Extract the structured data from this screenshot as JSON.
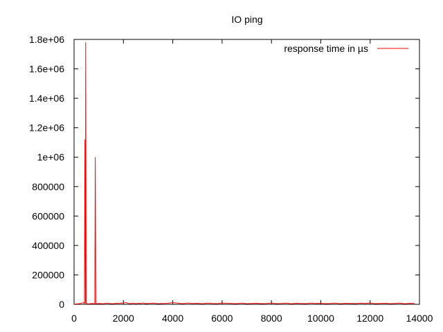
{
  "chart_data": {
    "type": "line",
    "title": "IO ping",
    "xlabel": "",
    "ylabel": "",
    "xlim": [
      0,
      14000
    ],
    "ylim": [
      0,
      1800000
    ],
    "x_ticks": [
      0,
      2000,
      4000,
      6000,
      8000,
      10000,
      12000,
      14000
    ],
    "y_ticks": [
      0,
      200000,
      400000,
      600000,
      800000,
      1000000,
      1200000,
      1400000,
      1600000,
      1800000
    ],
    "x_tick_labels": [
      "0",
      "2000",
      "4000",
      "6000",
      "8000",
      "10000",
      "12000",
      "14000"
    ],
    "y_tick_labels": [
      "0",
      "200000",
      "400000",
      "600000",
      "800000",
      "1e+06",
      "1.2e+06",
      "1.4e+06",
      "1.6e+06",
      "1.8e+06"
    ],
    "grid": false,
    "legend_position": "top-right",
    "series": [
      {
        "name": "response time in µs",
        "color": "#ff0000",
        "x": [
          0,
          100,
          200,
          300,
          380,
          420,
          440,
          460,
          470,
          480,
          490,
          500,
          520,
          540,
          600,
          700,
          800,
          840,
          860,
          880,
          900,
          1000,
          1100,
          1200,
          1300,
          1400,
          1500,
          1600,
          1700,
          1800,
          1900,
          2000,
          2100,
          2200,
          2300,
          2400,
          2500,
          2600,
          2700,
          2800,
          2900,
          3000,
          3200,
          3400,
          3600,
          3800,
          4000,
          4200,
          4400,
          4600,
          4800,
          5000,
          5200,
          5400,
          5600,
          5800,
          6000,
          6200,
          6400,
          6600,
          6800,
          7000,
          7200,
          7400,
          7600,
          7800,
          8000,
          8200,
          8400,
          8600,
          8800,
          9000,
          9200,
          9400,
          9600,
          9800,
          10000,
          10200,
          10400,
          10600,
          10800,
          11000,
          11200,
          11400,
          11600,
          11800,
          12000,
          12200,
          12400,
          12600,
          12800,
          13000,
          13200,
          13400,
          13600,
          13800
        ],
        "y": [
          2000,
          3000,
          4000,
          8000,
          12000,
          5000,
          1120000,
          6000,
          1780000,
          1000000,
          9000,
          7000,
          5000,
          4000,
          3000,
          6000,
          5000,
          3000,
          1000000,
          5000,
          4000,
          6000,
          5000,
          4000,
          8000,
          6000,
          5000,
          4000,
          7000,
          6000,
          9000,
          8000,
          12000,
          6000,
          5000,
          8000,
          4000,
          7000,
          6000,
          9000,
          5000,
          6000,
          8000,
          4000,
          6000,
          7000,
          12000,
          8000,
          5000,
          9000,
          6000,
          7000,
          4000,
          8000,
          6000,
          5000,
          9000,
          7000,
          6000,
          5000,
          8000,
          4000,
          6000,
          7000,
          5000,
          6000,
          9000,
          5000,
          6000,
          8000,
          4000,
          7000,
          6000,
          5000,
          8000,
          6000,
          7000,
          5000,
          6000,
          8000,
          4000,
          7000,
          6000,
          5000,
          8000,
          6000,
          9000,
          5000,
          6000,
          7000,
          5000,
          6000,
          8000,
          4000,
          7000,
          6000
        ]
      }
    ]
  }
}
